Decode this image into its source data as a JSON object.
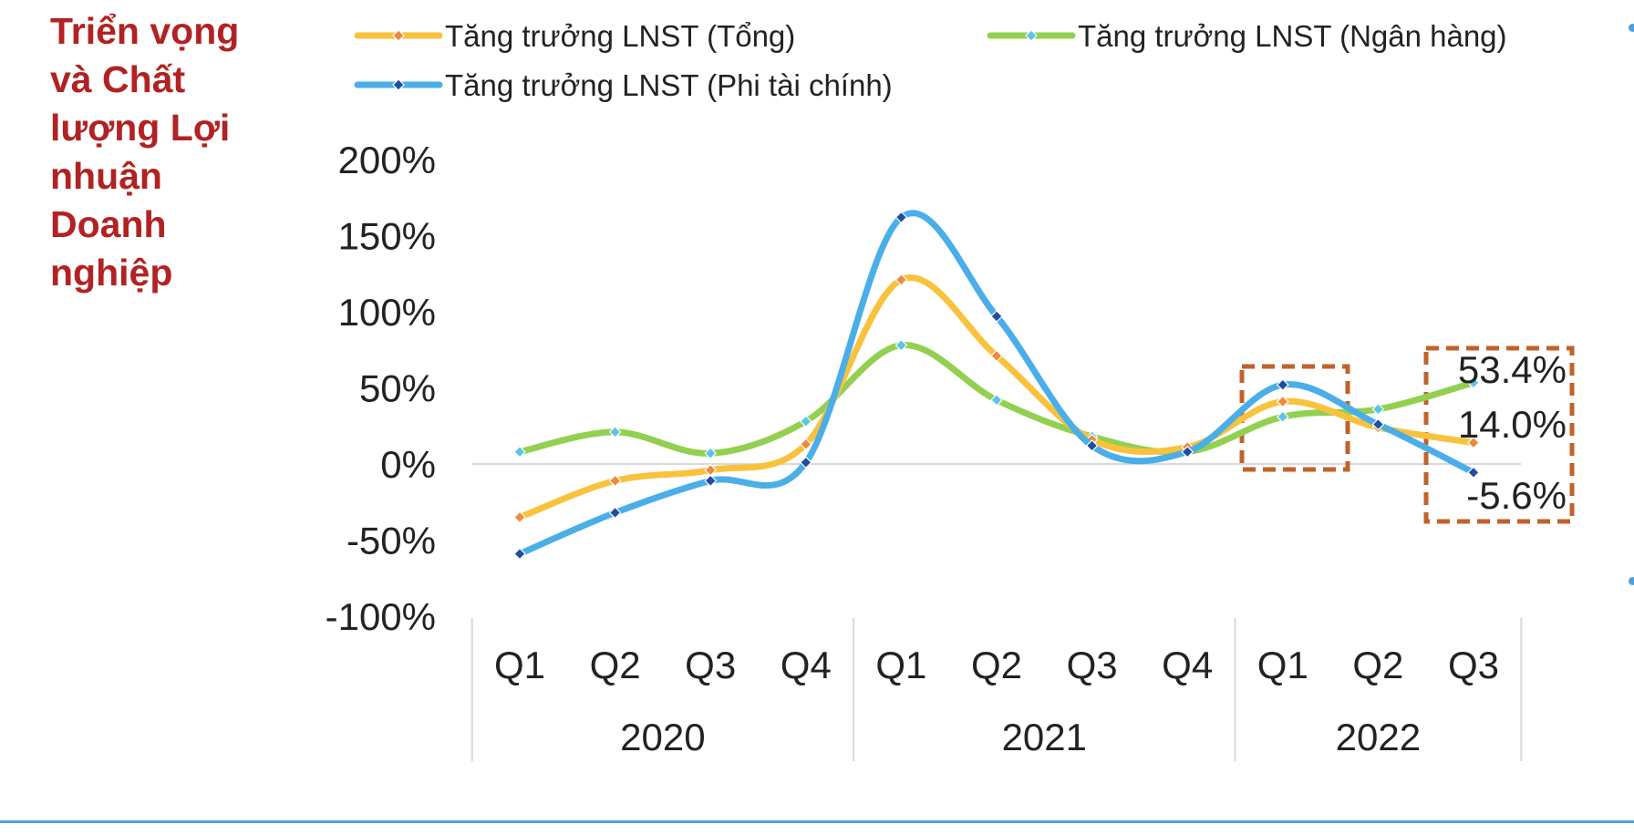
{
  "slide": {
    "title": "Triển vọng và Chất lượng Lợi nhuận Doanh nghiệp"
  },
  "colors": {
    "title": "#b22222",
    "highlight_box": "#c0622a",
    "zero_line": "#d9d9d9",
    "rule": "#4a9fe0"
  },
  "chart_data": {
    "type": "line",
    "smooth": true,
    "legend_position": "top",
    "grid": false,
    "ylim": [
      -1.0,
      2.0
    ],
    "y_ticks": [
      "200%",
      "150%",
      "100%",
      "50%",
      "0%",
      "-50%",
      "-100%"
    ],
    "y_tick_values": [
      2.0,
      1.5,
      1.0,
      0.5,
      0.0,
      -0.5,
      -1.0
    ],
    "categories": [
      "Q1",
      "Q2",
      "Q3",
      "Q4",
      "Q1",
      "Q2",
      "Q3",
      "Q4",
      "Q1",
      "Q2",
      "Q3"
    ],
    "groups": [
      {
        "label": "2020",
        "count": 4
      },
      {
        "label": "2021",
        "count": 4
      },
      {
        "label": "2022",
        "count": 3
      }
    ],
    "series": [
      {
        "name": "Tăng trưởng LNST (Tổng)",
        "color": "#f9c23c",
        "marker_color": "#ee8a3a",
        "values": [
          -0.35,
          -0.11,
          -0.04,
          0.13,
          1.21,
          0.71,
          0.16,
          0.11,
          0.41,
          0.24,
          0.14
        ]
      },
      {
        "name": "Tăng trưởng LNST (Ngân hàng)",
        "color": "#92d050",
        "marker_color": "#5bc5e8",
        "values": [
          0.08,
          0.21,
          0.07,
          0.28,
          0.78,
          0.42,
          0.18,
          0.08,
          0.31,
          0.36,
          0.534
        ]
      },
      {
        "name": "Tăng trưởng LNST (Phi tài chính)",
        "color": "#4aaee8",
        "marker_color": "#1f4e9e",
        "values": [
          -0.59,
          -0.32,
          -0.11,
          0.01,
          1.62,
          0.97,
          0.12,
          0.08,
          0.52,
          0.26,
          -0.056
        ]
      }
    ],
    "annotations": [
      "53.4%",
      "14.0%",
      "-5.6%"
    ]
  }
}
